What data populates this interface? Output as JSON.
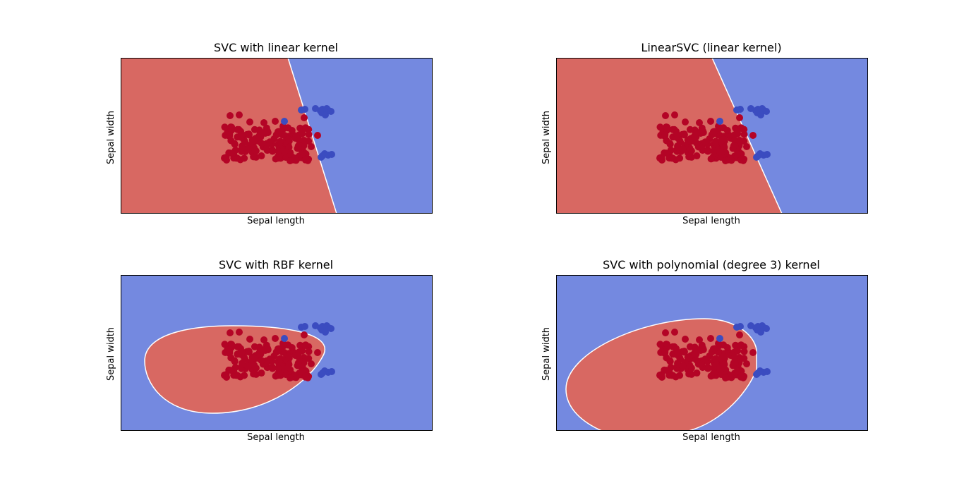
{
  "colors": {
    "red_region": "#d86862",
    "blue_region": "#7489e0",
    "red_point": "#b40426",
    "blue_point": "#3b4cc0",
    "boundary": "#ffffff"
  },
  "panels": [
    {
      "title": "SVC with linear kernel",
      "xlabel": "Sepal length",
      "ylabel": "Sepal width"
    },
    {
      "title": "LinearSVC (linear kernel)",
      "xlabel": "Sepal length",
      "ylabel": "Sepal width"
    },
    {
      "title": "SVC with RBF kernel",
      "xlabel": "Sepal length",
      "ylabel": "Sepal width"
    },
    {
      "title": "SVC with polynomial (degree 3) kernel",
      "xlabel": "Sepal length",
      "ylabel": "Sepal width"
    }
  ],
  "chart_data": [
    {
      "type": "scatter",
      "title": "SVC with linear kernel",
      "xlabel": "Sepal length",
      "ylabel": "Sepal width",
      "grid": false,
      "ticks": "hidden",
      "regions": {
        "left": "red",
        "right": "blue",
        "boundary": "straight line"
      },
      "classes": [
        {
          "color": "red"
        },
        {
          "color": "blue"
        }
      ]
    },
    {
      "type": "scatter",
      "title": "LinearSVC (linear kernel)",
      "xlabel": "Sepal length",
      "ylabel": "Sepal width",
      "grid": false,
      "ticks": "hidden",
      "regions": {
        "left": "red",
        "right": "blue",
        "boundary": "straight line"
      },
      "classes": [
        {
          "color": "red"
        },
        {
          "color": "blue"
        }
      ]
    },
    {
      "type": "scatter",
      "title": "SVC with RBF kernel",
      "xlabel": "Sepal length",
      "ylabel": "Sepal width",
      "grid": false,
      "ticks": "hidden",
      "regions": {
        "inside": "red",
        "outside": "blue",
        "boundary": "closed oval"
      },
      "classes": [
        {
          "color": "red"
        },
        {
          "color": "blue"
        }
      ]
    },
    {
      "type": "scatter",
      "title": "SVC with polynomial (degree 3) kernel",
      "xlabel": "Sepal length",
      "ylabel": "Sepal width",
      "grid": false,
      "ticks": "hidden",
      "regions": {
        "inside": "red",
        "outside": "blue",
        "boundary": "closed curve"
      },
      "classes": [
        {
          "color": "red"
        },
        {
          "color": "blue"
        }
      ]
    }
  ]
}
